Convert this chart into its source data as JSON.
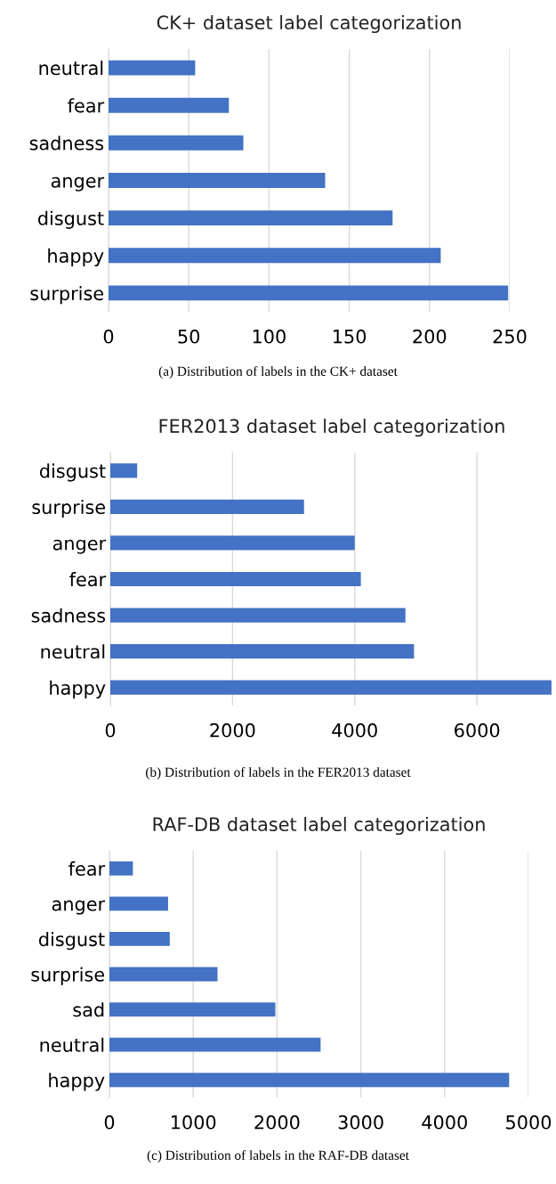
{
  "chart_data": [
    {
      "type": "bar",
      "orientation": "horizontal",
      "title": "CK+ dataset label categorization",
      "categories": [
        "neutral",
        "fear",
        "sadness",
        "anger",
        "disgust",
        "happy",
        "surprise"
      ],
      "values": [
        54,
        75,
        84,
        135,
        177,
        207,
        249
      ],
      "color": "#4472c4",
      "xlim": [
        0,
        250
      ],
      "xticks": [
        0,
        50,
        100,
        150,
        200,
        250
      ],
      "grid": "x",
      "annotations": [
        "(a) Distribution of labels in the CK+ dataset"
      ]
    },
    {
      "type": "bar",
      "orientation": "horizontal",
      "title": "FER2013 dataset label categorization",
      "categories": [
        "disgust",
        "surprise",
        "anger",
        "fear",
        "sadness",
        "neutral",
        "happy"
      ],
      "values": [
        440,
        3170,
        4000,
        4100,
        4830,
        4970,
        7220
      ],
      "color": "#4472c4",
      "xlim": [
        0,
        7250
      ],
      "xticks": [
        0,
        2000,
        4000,
        6000
      ],
      "grid": "x",
      "annotations": [
        "(b) Distribution of labels in the FER2013 dataset"
      ]
    },
    {
      "type": "bar",
      "orientation": "horizontal",
      "title": "RAF-DB dataset label categorization",
      "categories": [
        "fear",
        "anger",
        "disgust",
        "surprise",
        "sad",
        "neutral",
        "happy"
      ],
      "values": [
        280,
        700,
        720,
        1290,
        1980,
        2520,
        4770
      ],
      "color": "#4472c4",
      "xlim": [
        0,
        5000
      ],
      "xticks": [
        0,
        1000,
        2000,
        3000,
        4000,
        5000
      ],
      "grid": "x",
      "annotations": [
        "(c) Distribution of labels in the RAF-DB dataset"
      ]
    }
  ]
}
